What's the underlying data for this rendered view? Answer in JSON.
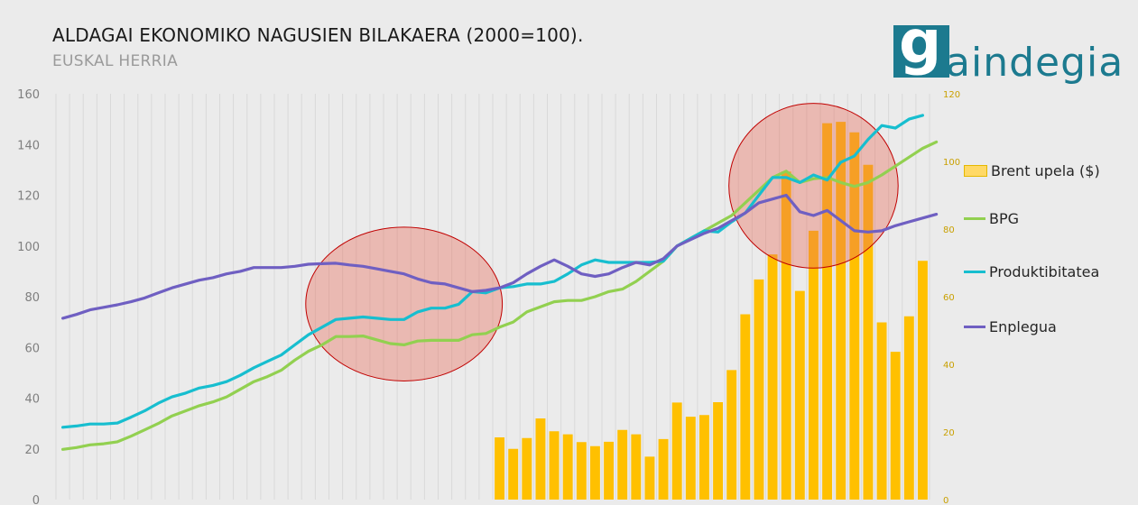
{
  "header": {
    "title": "ALDAGAI EKONOMIKO NAGUSIEN BILAKAERA (2000=100).",
    "subtitle": "EUSKAL HERRIA"
  },
  "logo": {
    "letter": "g",
    "text": "aindegia",
    "color": "#1c7a8f"
  },
  "chart_data": {
    "type": "line",
    "title": "ALDAGAI EKONOMIKO NAGUSIEN BILAKAERA (2000=100).",
    "subtitle": "EUSKAL HERRIA",
    "ylim": [
      0,
      160
    ],
    "yticks": [
      0,
      20,
      40,
      60,
      80,
      100,
      120,
      140,
      160
    ],
    "y2lim": [
      0,
      120
    ],
    "y2ticks": [
      0,
      20,
      40,
      60,
      80,
      100,
      120
    ],
    "grid": true,
    "legend_position": "right",
    "series": [
      {
        "name": "Brent upela ($)",
        "type": "bar",
        "axis": "right",
        "color": "#ffc000",
        "start_index": 32,
        "values": [
          18.4,
          15.0,
          18.2,
          24.0,
          20.2,
          19.3,
          17.0,
          15.8,
          17.1,
          20.6,
          19.3,
          12.7,
          17.9,
          28.7,
          24.5,
          25.0,
          28.8,
          38.3,
          54.8,
          65.1,
          72.5,
          97.0,
          61.7,
          79.5,
          111.3,
          111.7,
          108.6,
          99.0,
          52.4,
          43.7,
          54.2,
          70.6
        ]
      },
      {
        "name": "BPG",
        "type": "line",
        "axis": "left",
        "color": "#92d050",
        "values": [
          19.8,
          20.5,
          21.6,
          22.0,
          22.8,
          25.0,
          27.5,
          30.0,
          33.0,
          35.0,
          37.0,
          38.5,
          40.5,
          43.5,
          46.5,
          48.5,
          51.0,
          55.0,
          58.5,
          61.0,
          64.3,
          64.3,
          64.5,
          63.0,
          61.5,
          61.0,
          62.5,
          62.8,
          62.8,
          62.8,
          65.0,
          65.5,
          68.0,
          70.0,
          74.0,
          76.0,
          78.0,
          78.5,
          78.5,
          80.0,
          82.0,
          83.0,
          86.0,
          90.0,
          94.0,
          100.0,
          103.0,
          106.0,
          109.0,
          112.0,
          117.0,
          122.0,
          127.0,
          129.5,
          125.0,
          126.5,
          127.0,
          125.0,
          123.5,
          125.0,
          128.0,
          131.5,
          135.0,
          138.5,
          141.0
        ]
      },
      {
        "name": "Produktibitatea",
        "type": "line",
        "axis": "left",
        "color": "#17becf",
        "values": [
          28.5,
          29.0,
          29.8,
          29.8,
          30.2,
          32.5,
          35.0,
          38.0,
          40.5,
          42.0,
          44.0,
          45.0,
          46.5,
          49.0,
          52.0,
          54.5,
          57.0,
          61.0,
          65.0,
          68.0,
          71.0,
          71.5,
          72.0,
          71.5,
          71.0,
          71.0,
          74.0,
          75.5,
          75.5,
          77.0,
          82.0,
          81.5,
          83.5,
          84.0,
          85.0,
          85.0,
          86.0,
          89.0,
          92.5,
          94.5,
          93.5,
          93.5,
          93.5,
          93.5,
          94.0,
          100.0,
          103.0,
          106.0,
          105.5,
          109.5,
          113.0,
          120.0,
          127.0,
          127.0,
          125.0,
          128.0,
          126.0,
          133.0,
          135.5,
          142.0,
          147.5,
          146.5,
          150.0,
          151.5
        ]
      },
      {
        "name": "Enplegua",
        "type": "line",
        "axis": "left",
        "color": "#6f5fc2",
        "values": [
          71.5,
          73.0,
          74.8,
          75.8,
          76.8,
          78.0,
          79.5,
          81.5,
          83.5,
          85.0,
          86.5,
          87.5,
          89.0,
          90.0,
          91.5,
          91.5,
          91.5,
          92.0,
          92.8,
          93.0,
          93.2,
          92.5,
          92.0,
          91.0,
          90.0,
          89.0,
          87.0,
          85.5,
          85.0,
          83.5,
          82.0,
          82.5,
          83.5,
          85.5,
          89.0,
          92.0,
          94.5,
          92.0,
          89.0,
          88.0,
          89.0,
          91.5,
          93.5,
          92.5,
          95.0,
          100.0,
          102.5,
          105.0,
          107.0,
          110.0,
          113.0,
          117.0,
          118.5,
          120.0,
          113.5,
          112.0,
          114.0,
          110.0,
          106.0,
          105.5,
          106.0,
          108.0,
          109.5,
          111.0,
          112.5
        ]
      }
    ],
    "annotations": [
      {
        "type": "circle",
        "color": "#e86f5c",
        "from_index": 20,
        "to_index": 30
      },
      {
        "type": "circle",
        "color": "#e86f5c",
        "from_index": 51,
        "to_index": 59
      }
    ]
  }
}
